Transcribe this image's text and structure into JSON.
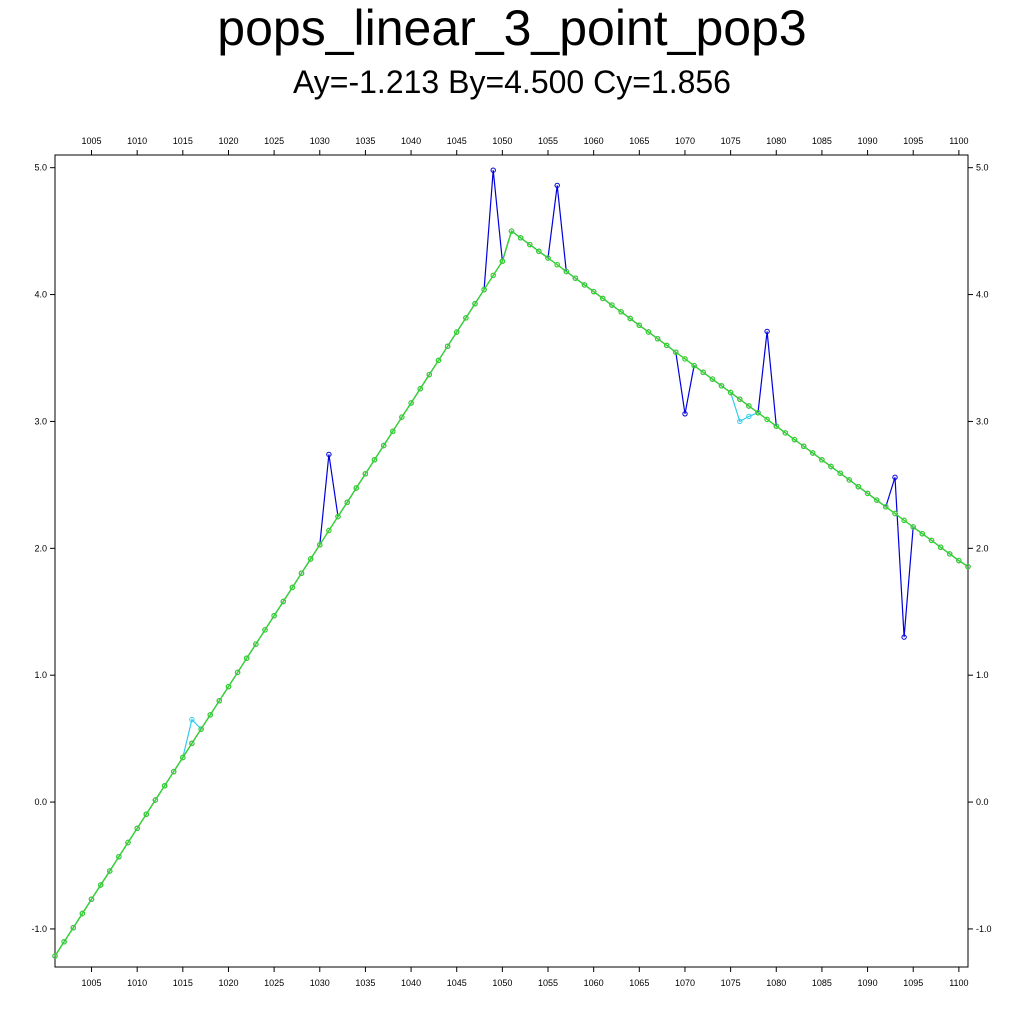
{
  "chart_data": {
    "type": "line",
    "title": "pops_linear_3_point_pop3",
    "subtitle": "Ay=-1.213 By=4.500 Cy=1.856",
    "xlim": [
      1001,
      1101
    ],
    "ylim": [
      -1.3,
      5.1
    ],
    "x_ticks": [
      1005,
      1010,
      1015,
      1020,
      1025,
      1030,
      1035,
      1040,
      1045,
      1050,
      1055,
      1060,
      1065,
      1070,
      1075,
      1080,
      1085,
      1090,
      1095,
      1100
    ],
    "x_tick_labels": [
      "1005",
      "1010",
      "1015",
      "1020",
      "1025",
      "1030",
      "1035",
      "1040",
      "1045",
      "1050",
      "1055",
      "1060",
      "1065",
      "1070",
      "1075",
      "1080",
      "1085",
      "1090",
      "1095",
      "1100"
    ],
    "y_ticks": [
      -1.0,
      0.0,
      1.0,
      2.0,
      3.0,
      4.0,
      5.0
    ],
    "y_tick_labels": [
      "-1.0",
      "0.0",
      "1.0",
      "2.0",
      "3.0",
      "4.0",
      "5.0"
    ],
    "grid": false,
    "legend": "none",
    "x": [
      1001,
      1002,
      1003,
      1004,
      1005,
      1006,
      1007,
      1008,
      1009,
      1010,
      1011,
      1012,
      1013,
      1014,
      1015,
      1016,
      1017,
      1018,
      1019,
      1020,
      1021,
      1022,
      1023,
      1024,
      1025,
      1026,
      1027,
      1028,
      1029,
      1030,
      1031,
      1032,
      1033,
      1034,
      1035,
      1036,
      1037,
      1038,
      1039,
      1040,
      1041,
      1042,
      1043,
      1044,
      1045,
      1046,
      1047,
      1048,
      1049,
      1050,
      1051,
      1052,
      1053,
      1054,
      1055,
      1056,
      1057,
      1058,
      1059,
      1060,
      1061,
      1062,
      1063,
      1064,
      1065,
      1066,
      1067,
      1068,
      1069,
      1070,
      1071,
      1072,
      1073,
      1074,
      1075,
      1076,
      1077,
      1078,
      1079,
      1080,
      1081,
      1082,
      1083,
      1084,
      1085,
      1086,
      1087,
      1088,
      1089,
      1090,
      1091,
      1092,
      1093,
      1094,
      1095,
      1096,
      1097,
      1098,
      1099,
      1100,
      1101
    ],
    "series": [
      {
        "color": "#0000dd",
        "values": [
          -1.213,
          -1.101,
          -0.99,
          -0.878,
          -0.766,
          -0.654,
          -0.543,
          -0.431,
          -0.319,
          -0.207,
          -0.096,
          0.016,
          0.128,
          0.24,
          0.351,
          0.463,
          0.575,
          0.687,
          0.798,
          0.91,
          1.022,
          1.134,
          1.245,
          1.357,
          1.469,
          1.581,
          1.692,
          1.804,
          1.916,
          2.028,
          2.74,
          2.251,
          2.363,
          2.475,
          2.587,
          2.698,
          2.81,
          2.922,
          3.034,
          3.145,
          3.257,
          3.369,
          3.481,
          3.592,
          3.704,
          3.816,
          3.928,
          4.039,
          4.98,
          4.263,
          4.5,
          4.447,
          4.394,
          4.341,
          4.288,
          4.86,
          4.182,
          4.129,
          4.076,
          4.023,
          3.97,
          3.917,
          3.864,
          3.811,
          3.758,
          3.705,
          3.652,
          3.599,
          3.546,
          3.06,
          3.44,
          3.387,
          3.334,
          3.281,
          3.228,
          3.175,
          3.122,
          3.069,
          3.71,
          2.963,
          2.91,
          2.857,
          2.804,
          2.751,
          2.698,
          2.645,
          2.592,
          2.539,
          2.486,
          2.433,
          2.38,
          2.327,
          2.56,
          1.3,
          2.168,
          2.115,
          2.062,
          2.009,
          1.956,
          1.903,
          1.856
        ]
      },
      {
        "color": "#33ccee",
        "values": [
          -1.213,
          -1.101,
          -0.99,
          -0.878,
          -0.766,
          -0.654,
          -0.543,
          -0.431,
          -0.319,
          -0.207,
          -0.096,
          0.016,
          0.128,
          0.24,
          0.351,
          0.65,
          0.575,
          0.687,
          0.798,
          0.91,
          1.022,
          1.134,
          1.245,
          1.357,
          1.469,
          1.581,
          1.692,
          1.804,
          1.916,
          2.028,
          2.14,
          2.251,
          2.363,
          2.475,
          2.587,
          2.698,
          2.81,
          2.922,
          3.034,
          3.145,
          3.257,
          3.369,
          3.481,
          3.592,
          3.704,
          3.816,
          3.928,
          4.039,
          4.151,
          4.263,
          4.5,
          4.447,
          4.394,
          4.341,
          4.288,
          4.235,
          4.182,
          4.129,
          4.076,
          4.023,
          3.97,
          3.917,
          3.864,
          3.811,
          3.758,
          3.705,
          3.652,
          3.599,
          3.546,
          3.493,
          3.44,
          3.387,
          3.334,
          3.281,
          3.228,
          3.0,
          3.04,
          3.069,
          3.016,
          2.963,
          2.91,
          2.857,
          2.804,
          2.751,
          2.698,
          2.645,
          2.592,
          2.539,
          2.486,
          2.433,
          2.38,
          2.327,
          2.274,
          2.221,
          2.168,
          2.115,
          2.062,
          2.009,
          1.956,
          1.903,
          1.856
        ]
      },
      {
        "color": "#ff8800",
        "values": [
          -1.213,
          -1.101,
          -0.99,
          -0.878,
          -0.766,
          -0.654,
          -0.543,
          -0.431,
          -0.319,
          -0.207,
          -0.096,
          0.016,
          0.128,
          0.24,
          0.351,
          0.463,
          0.575,
          0.687,
          0.798,
          0.91,
          1.022,
          1.134,
          1.245,
          1.357,
          1.469,
          1.581,
          1.692,
          1.804,
          1.916,
          2.028,
          2.14,
          2.251,
          2.363,
          2.475,
          2.587,
          2.698,
          2.81,
          2.922,
          3.034,
          3.145,
          3.257,
          3.369,
          3.481,
          3.592,
          3.704,
          3.816,
          3.928,
          4.039,
          4.151,
          4.263,
          4.5,
          4.447,
          4.394,
          4.341,
          4.288,
          4.235,
          4.182,
          4.129,
          4.076,
          4.023,
          3.97,
          3.917,
          3.864,
          3.811,
          3.758,
          3.705,
          3.652,
          3.599,
          3.546,
          3.493,
          3.44,
          3.387,
          3.334,
          3.281,
          3.228,
          3.175,
          3.122,
          3.069,
          3.016,
          2.963,
          2.91,
          2.857,
          2.804,
          2.751,
          2.698,
          2.645,
          2.592,
          2.539,
          2.486,
          2.433,
          2.38,
          2.327,
          2.274,
          2.221,
          2.168,
          2.115,
          2.062,
          2.009,
          1.956,
          1.903,
          1.856
        ]
      },
      {
        "color": "#22dd33",
        "values": [
          -1.213,
          -1.101,
          -0.99,
          -0.878,
          -0.766,
          -0.654,
          -0.543,
          -0.431,
          -0.319,
          -0.207,
          -0.096,
          0.016,
          0.128,
          0.24,
          0.351,
          0.463,
          0.575,
          0.687,
          0.798,
          0.91,
          1.022,
          1.134,
          1.245,
          1.357,
          1.469,
          1.581,
          1.692,
          1.804,
          1.916,
          2.028,
          2.14,
          2.251,
          2.363,
          2.475,
          2.587,
          2.698,
          2.81,
          2.922,
          3.034,
          3.145,
          3.257,
          3.369,
          3.481,
          3.592,
          3.704,
          3.816,
          3.928,
          4.039,
          4.151,
          4.263,
          4.5,
          4.447,
          4.394,
          4.341,
          4.288,
          4.235,
          4.182,
          4.129,
          4.076,
          4.023,
          3.97,
          3.917,
          3.864,
          3.811,
          3.758,
          3.705,
          3.652,
          3.599,
          3.546,
          3.493,
          3.44,
          3.387,
          3.334,
          3.281,
          3.228,
          3.175,
          3.122,
          3.069,
          3.016,
          2.963,
          2.91,
          2.857,
          2.804,
          2.751,
          2.698,
          2.645,
          2.592,
          2.539,
          2.486,
          2.433,
          2.38,
          2.327,
          2.274,
          2.221,
          2.168,
          2.115,
          2.062,
          2.009,
          1.956,
          1.903,
          1.856
        ]
      }
    ]
  }
}
